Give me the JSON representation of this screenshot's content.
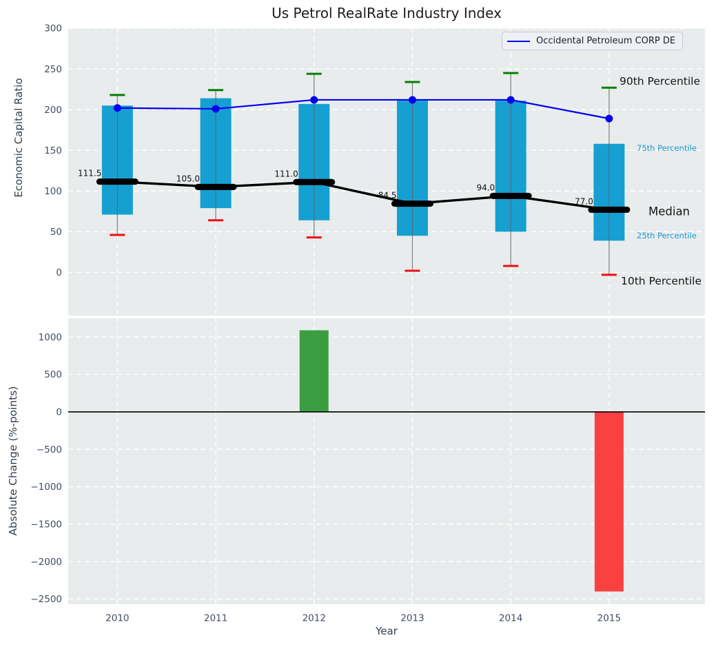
{
  "title": "Us Petrol RealRate Industry Index",
  "legend": {
    "label": "Occidental Petroleum CORP DE"
  },
  "annotations": {
    "p90": "90th Percentile",
    "p75": "75th Percentile",
    "median": "Median",
    "p25": "25th Percentile",
    "p10": "10th Percentile"
  },
  "colors": {
    "panel_bg": "#e9eced",
    "grid": "#ffffff",
    "box_fill": "#16a0d2",
    "cap_high": "#028002",
    "cap_low": "#ee0e0e",
    "whisker": "#606060",
    "median": "#000000",
    "company_line": "#0000f0",
    "bar_positive": "#3a9e40",
    "bar_negative": "#fa4141",
    "zero_line": "#000000",
    "tick_label": "#3e4d63",
    "median_label": "#111111"
  },
  "chart_data": [
    {
      "type": "box-percentile",
      "title": "Us Petrol RealRate Industry Index",
      "ylabel": "Economic Capital Ratio",
      "x": [
        2010,
        2011,
        2012,
        2013,
        2014,
        2015
      ],
      "series": [
        {
          "name": "90th Percentile",
          "values": [
            218,
            224,
            244,
            234,
            245,
            227
          ]
        },
        {
          "name": "75th Percentile",
          "values": [
            205,
            214,
            207,
            211,
            211,
            158
          ]
        },
        {
          "name": "Median",
          "values": [
            111.5,
            105.0,
            111.0,
            84.5,
            94.0,
            77.0
          ]
        },
        {
          "name": "25th Percentile",
          "values": [
            71,
            79,
            64,
            45,
            50,
            39
          ]
        },
        {
          "name": "10th Percentile",
          "values": [
            46,
            64,
            43,
            2,
            8,
            -3
          ]
        },
        {
          "name": "Occidental Petroleum CORP DE",
          "values": [
            202,
            201,
            212,
            212,
            212,
            189
          ]
        }
      ],
      "ylim": [
        -53,
        300
      ],
      "yticks": [
        300,
        250,
        200,
        150,
        100,
        50,
        0
      ],
      "legend_position": "upper right",
      "grid": true
    },
    {
      "type": "bar",
      "ylabel": "Absolute Change (%-points)",
      "xlabel": "Year",
      "categories": [
        2010,
        2011,
        2012,
        2013,
        2014,
        2015
      ],
      "values": [
        0,
        0,
        1090,
        0,
        0,
        -2400
      ],
      "ylim": [
        -2570,
        1250
      ],
      "yticks": [
        1000,
        500,
        0,
        -500,
        -1000,
        -1500,
        -2000,
        -2500
      ],
      "grid": true
    }
  ]
}
